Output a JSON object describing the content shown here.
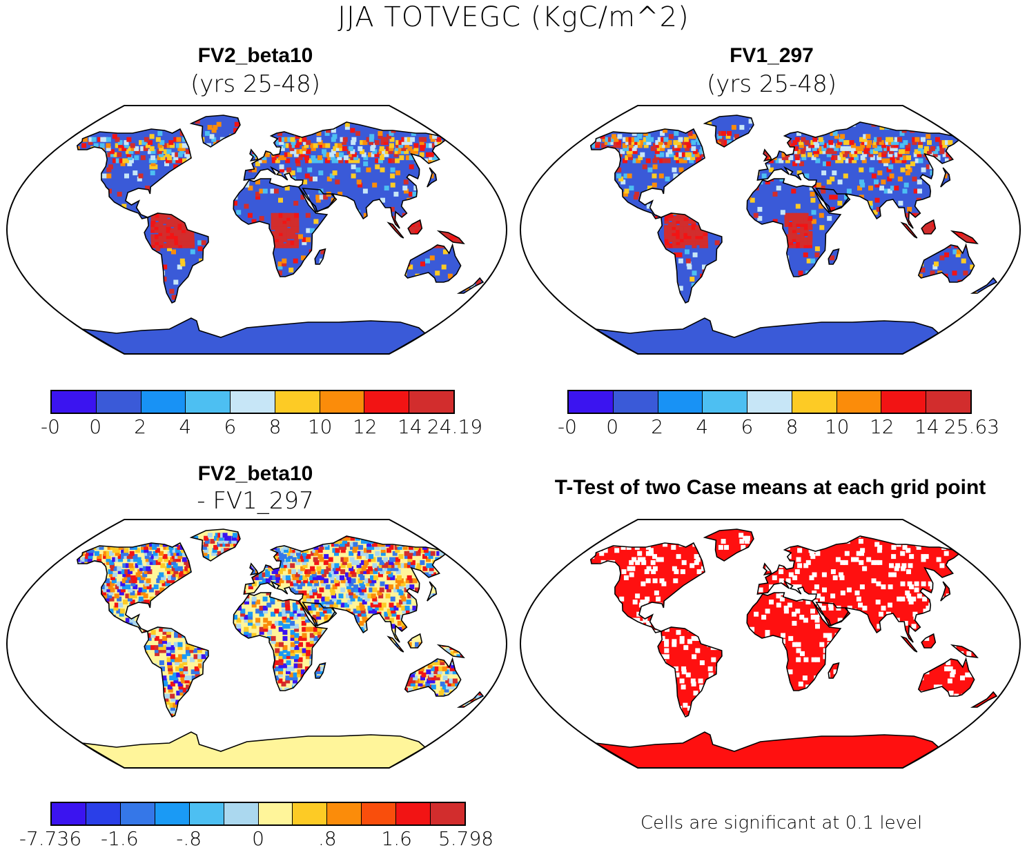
{
  "title": "JJA TOTVEGC (KgC/m^2)",
  "panels": [
    {
      "id": "p1",
      "title": "FV2_beta10",
      "subtitle": "(yrs 25-48)"
    },
    {
      "id": "p2",
      "title": "FV1_297",
      "subtitle": "(yrs 25-48)"
    },
    {
      "id": "p3",
      "title": "FV2_beta10",
      "subtitle": "- FV1_297"
    },
    {
      "id": "p4",
      "title": "T-Test of two Case means at each grid point",
      "subtitle": ""
    }
  ],
  "colorbars": [
    {
      "id": "cb1",
      "colors": [
        "#3b14f0",
        "#3a5ad8",
        "#1892f5",
        "#4dbff2",
        "#c7e6f7",
        "#fdcb25",
        "#fb8c0a",
        "#f21414",
        "#d22d2d"
      ],
      "labels": [
        "-0",
        "0",
        "2",
        "4",
        "6",
        "8",
        "10",
        "12",
        "14",
        "24.19"
      ]
    },
    {
      "id": "cb2",
      "colors": [
        "#3b14f0",
        "#3a5ad8",
        "#1892f5",
        "#4dbff2",
        "#c7e6f7",
        "#fdcb25",
        "#fb8c0a",
        "#f21414",
        "#d22d2d"
      ],
      "labels": [
        "-0",
        "0",
        "2",
        "4",
        "6",
        "8",
        "10",
        "12",
        "14",
        "25.63"
      ]
    },
    {
      "id": "cb3",
      "colors": [
        "#3b14f0",
        "#2a3fe8",
        "#3577e8",
        "#1a9af5",
        "#4dbff2",
        "#abd8ef",
        "#fff59a",
        "#fdcb25",
        "#fb8c0a",
        "#f94e0c",
        "#f21414",
        "#d22d2d"
      ],
      "labels": [
        "-7.736",
        "-1.6",
        "-.8",
        "0",
        ".8",
        "1.6",
        "5.798"
      ]
    }
  ],
  "significance_note": "Cells are significant at 0.1 level",
  "map_fill": {
    "p1": "#3a5ad8",
    "p2": "#3a5ad8",
    "p3": "#fff59a",
    "p4": "#ff1010"
  },
  "map_accents": {
    "p1": [
      "#d22d2d",
      "#f21414",
      "#fdcb25",
      "#4dbff2",
      "#c7e6f7",
      "#fb8c0a"
    ],
    "p2": [
      "#d22d2d",
      "#f21414",
      "#fdcb25",
      "#4dbff2",
      "#c7e6f7",
      "#fb8c0a"
    ],
    "p3": [
      "#abd8ef",
      "#3577e8",
      "#3b14f0",
      "#f21414",
      "#fb8c0a",
      "#fdcb25",
      "#1a9af5",
      "#d22d2d"
    ],
    "p4": [
      "#ffffff"
    ]
  }
}
